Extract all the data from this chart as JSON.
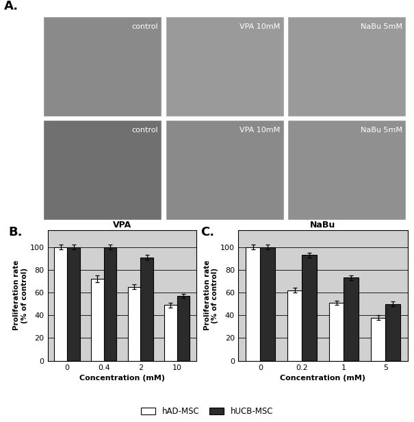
{
  "panel_A_label": "A.",
  "panel_B_label": "B.",
  "panel_C_label": "C.",
  "vpa_title": "VPA",
  "nabu_title": "NaBu",
  "vpa_xlabel": "Concentration (mM)",
  "nabu_xlabel": "Concentration (mM)",
  "ylabel": "Proliferation rate\n(% of control)",
  "vpa_xticks": [
    "0",
    "0.4",
    "2",
    "10"
  ],
  "nabu_xticks": [
    "0",
    "0.2",
    "1",
    "5"
  ],
  "vpa_hAD": [
    100,
    72,
    65,
    49
  ],
  "vpa_hUCB": [
    100,
    100,
    91,
    57
  ],
  "vpa_hAD_err": [
    2,
    3,
    2,
    2
  ],
  "vpa_hUCB_err": [
    2,
    2,
    2,
    2
  ],
  "nabu_hAD": [
    100,
    62,
    51,
    38
  ],
  "nabu_hUCB": [
    100,
    93,
    73,
    50
  ],
  "nabu_hAD_err": [
    2,
    2,
    2,
    2
  ],
  "nabu_hUCB_err": [
    2,
    2,
    2,
    2
  ],
  "color_hAD": "#ffffff",
  "color_hUCB": "#2b2b2b",
  "bar_edge_color": "#000000",
  "bar_width": 0.35,
  "ylim": [
    0,
    115
  ],
  "yticks": [
    0,
    20,
    40,
    60,
    80,
    100
  ],
  "legend_hAD": "hAD-MSC",
  "legend_hUCB": "hUCB-MSC",
  "plot_bg_color": "#d0d0d0",
  "fig_bg_color": "#ffffff",
  "img_labels_top": [
    "control",
    "VPA 10mM",
    "NaBu 5mM"
  ],
  "img_labels_bot": [
    "control",
    "VPA 10mM",
    "NaBu 5mM"
  ],
  "img_bg_top": [
    "#8a8a8a",
    "#9a9a9a",
    "#9a9a9a"
  ],
  "img_bg_bot": [
    "#707070",
    "#8a8a8a",
    "#909090"
  ]
}
